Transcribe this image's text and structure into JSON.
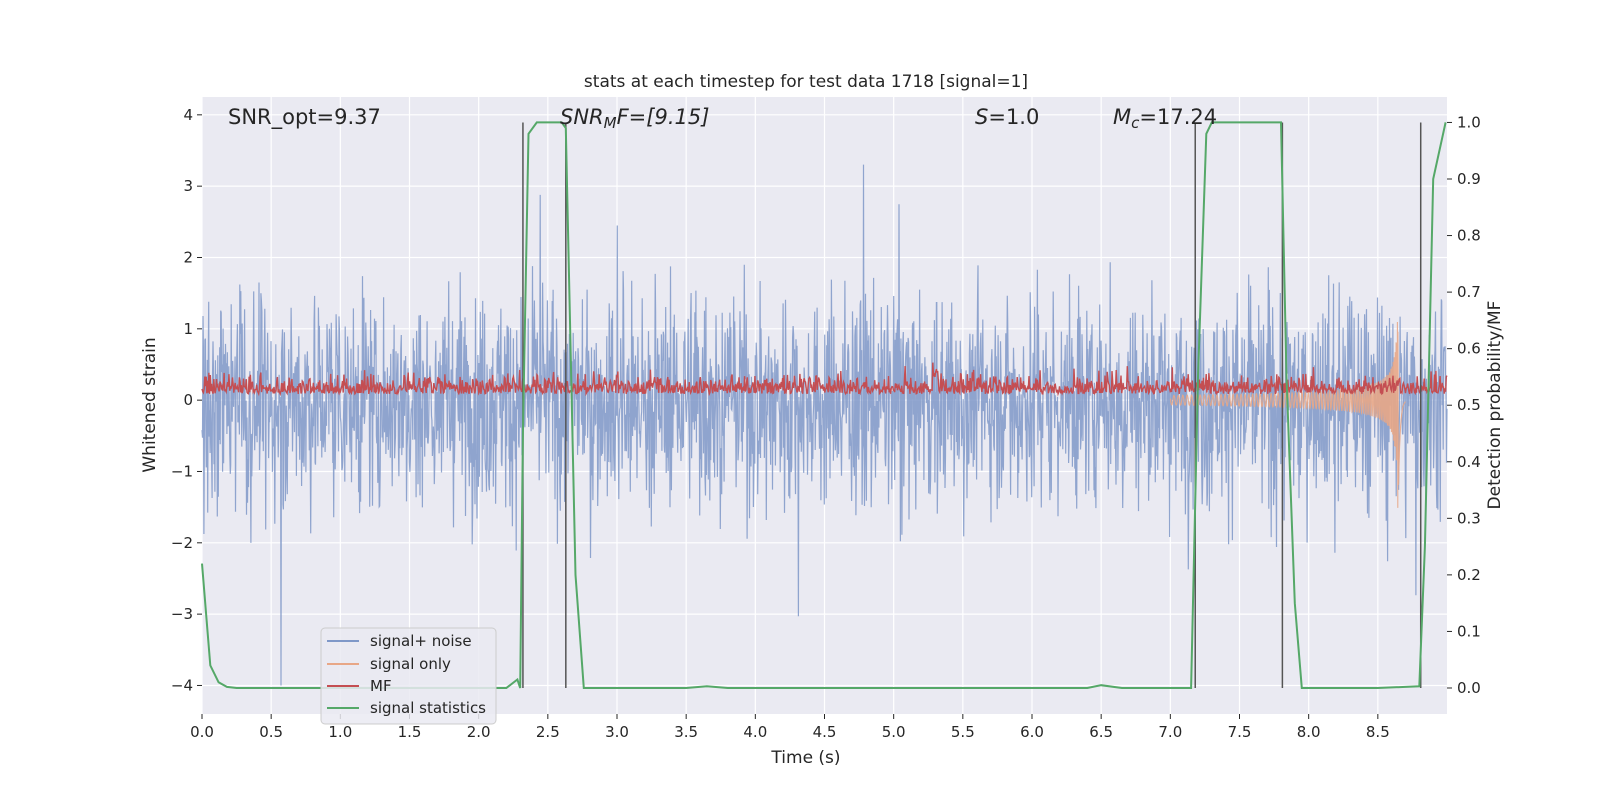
{
  "chart_data": {
    "type": "line",
    "title": "stats at each timestep for test data 1718 [signal=1]",
    "xlabel": "Time (s)",
    "ylabel_left": "Whitened strain",
    "ylabel_right": "Detection probability/MF",
    "xlim": [
      0,
      9.0
    ],
    "ylim_left": [
      -4.4,
      4.25
    ],
    "ylim_right": [
      -0.046,
      1.045
    ],
    "grid": true,
    "legend_position": "lower-left",
    "x_ticks": [
      "0.0",
      "0.5",
      "1.0",
      "1.5",
      "2.0",
      "2.5",
      "3.0",
      "3.5",
      "4.0",
      "4.5",
      "5.0",
      "5.5",
      "6.0",
      "6.5",
      "7.0",
      "7.5",
      "8.0",
      "8.5"
    ],
    "y_ticks_left": [
      "4",
      "3",
      "2",
      "1",
      "0",
      "−1",
      "−2",
      "−3",
      "−4"
    ],
    "y_ticks_right": [
      "1.0",
      "0.9",
      "0.8",
      "0.7",
      "0.6",
      "0.5",
      "0.4",
      "0.3",
      "0.2",
      "0.1",
      "0.0"
    ],
    "annotations": {
      "snr_opt": "SNR_opt=9.37",
      "snr_mf_italic": "SNR",
      "snr_mf_sub": "M",
      "snr_mf_rest": "F=[9.15]",
      "s_italic": "S",
      "s_rest": "=1.0",
      "mc_italic": "M",
      "mc_sub": "c",
      "mc_rest": "=17.24"
    },
    "vertical_lines_x": [
      2.32,
      2.63,
      7.18,
      7.81,
      8.81
    ],
    "series": [
      {
        "name": "signal+ noise",
        "color": "#7f98c8",
        "description_range": [
          -4.0,
          4.0
        ]
      },
      {
        "name": "signal only",
        "color": "#e8a787",
        "peak_x": 8.65,
        "peak_amplitude": 1.8
      },
      {
        "name": "MF",
        "color": "#c44e52",
        "baseline_right_axis": 0.52
      },
      {
        "name": "signal statistics",
        "color": "#55a868",
        "x": [
          0.0,
          0.06,
          0.12,
          0.18,
          0.25,
          0.5,
          1.0,
          1.5,
          2.0,
          2.2,
          2.28,
          2.3,
          2.32,
          2.36,
          2.42,
          2.48,
          2.6,
          2.63,
          2.7,
          2.76,
          3.0,
          3.5,
          3.65,
          3.8,
          4.5,
          5.5,
          6.4,
          6.5,
          6.65,
          7.0,
          7.15,
          7.2,
          7.26,
          7.3,
          7.5,
          7.75,
          7.8,
          7.84,
          7.9,
          7.95,
          8.0,
          8.5,
          8.8,
          8.84,
          8.9,
          8.99
        ],
        "y": [
          0.22,
          0.04,
          0.01,
          0.002,
          0.0,
          0.0,
          0.0,
          0.0,
          0.0,
          0.0,
          0.015,
          0.0,
          0.45,
          0.98,
          1.0,
          1.0,
          1.0,
          0.99,
          0.2,
          0.0,
          0.0,
          0.0,
          0.003,
          0.0,
          0.0,
          0.0,
          0.0,
          0.005,
          0.0,
          0.0,
          0.0,
          0.55,
          0.98,
          1.0,
          1.0,
          1.0,
          1.0,
          0.55,
          0.15,
          0.0,
          0.0,
          0.0,
          0.003,
          0.25,
          0.9,
          1.0
        ]
      }
    ]
  }
}
